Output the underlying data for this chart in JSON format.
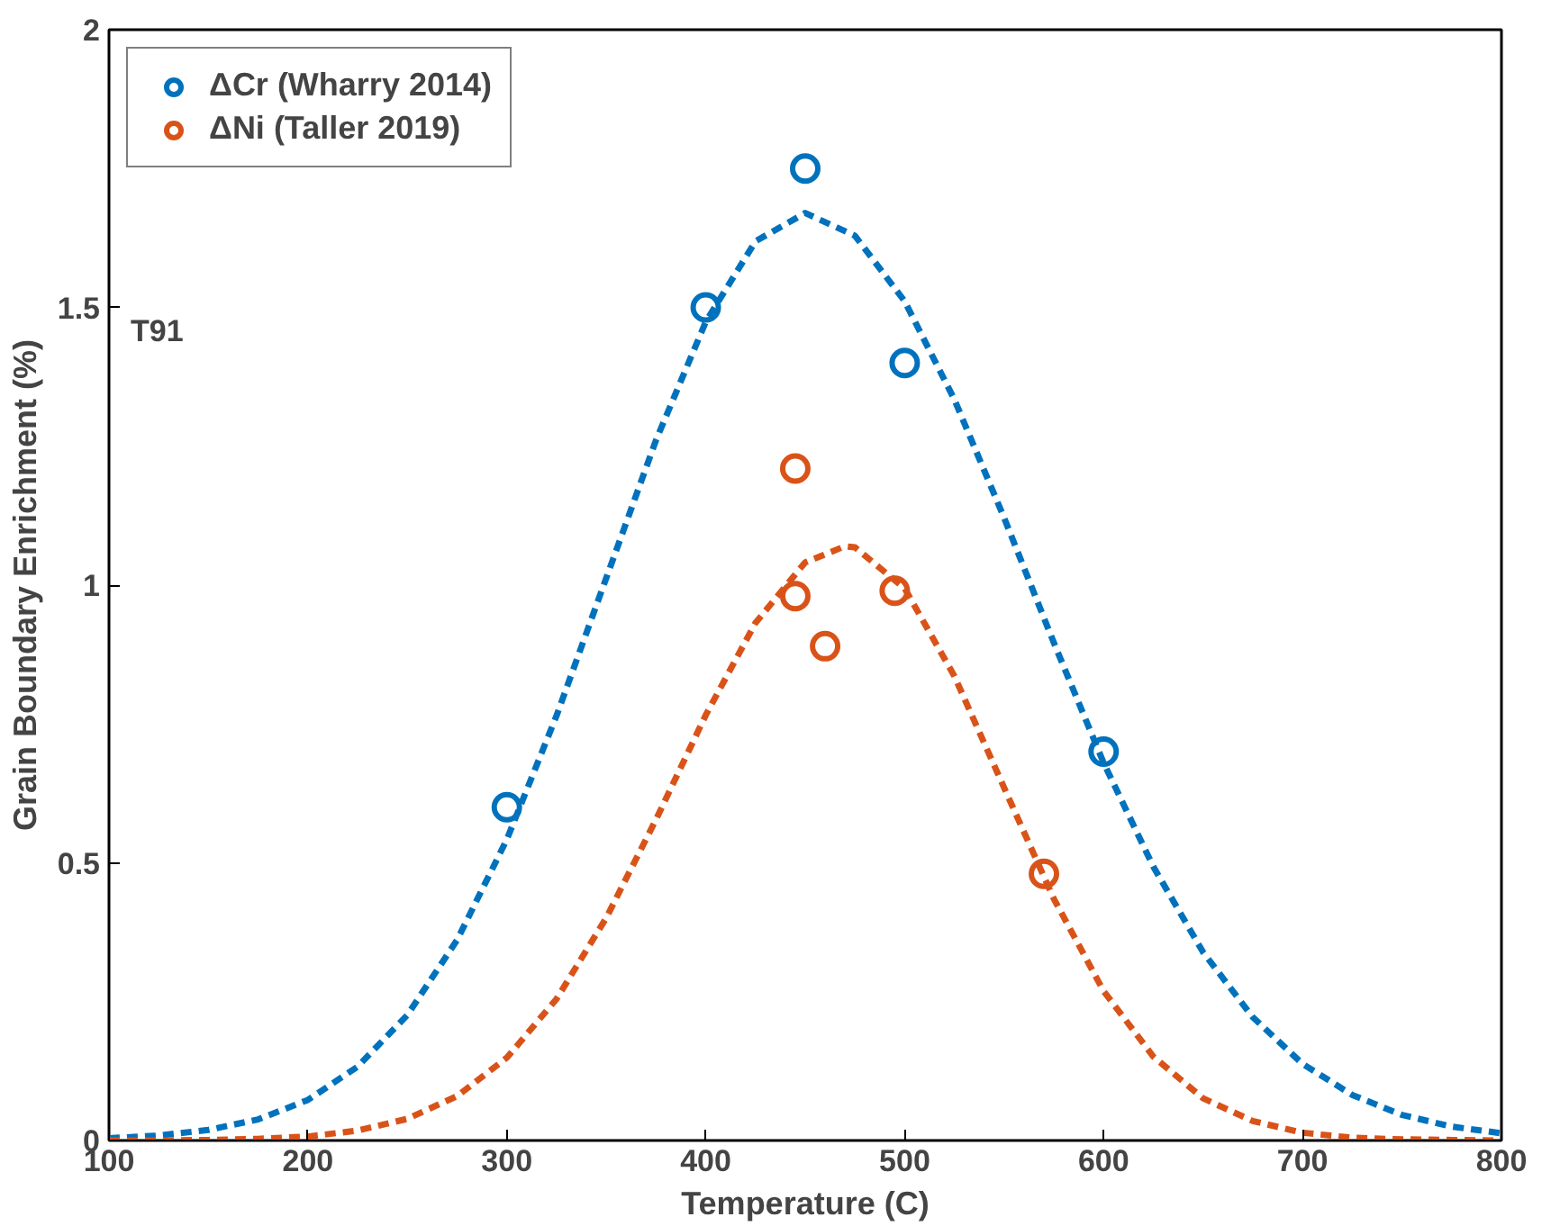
{
  "chart_data": {
    "type": "scatter",
    "xlabel": "Temperature (C)",
    "ylabel": "Grain Boundary Enrichment (%)",
    "xlim": [
      100,
      800
    ],
    "ylim": [
      0,
      2
    ],
    "xticks": [
      100,
      200,
      300,
      400,
      500,
      600,
      700,
      800
    ],
    "yticks": [
      0,
      {
        "value": 0.5,
        "label": "0.5"
      },
      1,
      {
        "value": 1.5,
        "label": "1.5"
      },
      2
    ],
    "grid": false,
    "legend": "top left",
    "marker": "circle",
    "annotations": [
      "T91"
    ],
    "series": [
      {
        "name": "ΔCr (Wharry 2014)",
        "color": "#0072bd",
        "x": [
          300,
          400,
          450,
          500,
          600
        ],
        "values": [
          0.6,
          1.5,
          1.75,
          1.4,
          0.7
        ]
      },
      {
        "name": "ΔNi (Taller 2019)",
        "color": "#d95319",
        "x": [
          445,
          445,
          460,
          495,
          570
        ],
        "values": [
          1.21,
          0.98,
          0.89,
          0.99,
          0.48
        ]
      },
      {
        "type": "line",
        "marker": "none",
        "line_style": "dashed",
        "color": "#0072bd",
        "x": [
          100,
          125,
          150,
          175,
          200,
          225,
          250,
          275,
          300,
          325,
          350,
          375,
          400,
          425,
          450,
          475,
          500,
          525,
          550,
          575,
          600,
          625,
          650,
          675,
          700,
          725,
          750,
          775,
          800
        ],
        "values": [
          0.004,
          0.009,
          0.019,
          0.038,
          0.073,
          0.133,
          0.226,
          0.361,
          0.542,
          0.765,
          1.013,
          1.261,
          1.474,
          1.619,
          1.67,
          1.629,
          1.511,
          1.334,
          1.121,
          0.896,
          0.68,
          0.493,
          0.339,
          0.222,
          0.138,
          0.082,
          0.046,
          0.025,
          0.013
        ]
      },
      {
        "type": "line",
        "marker": "none",
        "line_style": "dashed",
        "color": "#d95319",
        "x": [
          100,
          125,
          150,
          175,
          200,
          225,
          250,
          275,
          300,
          325,
          350,
          375,
          400,
          425,
          450,
          470,
          475,
          500,
          525,
          550,
          575,
          600,
          625,
          650,
          675,
          700,
          725,
          750,
          775,
          800
        ],
        "values": [
          0.0,
          0.0,
          0.001,
          0.003,
          0.007,
          0.018,
          0.039,
          0.08,
          0.149,
          0.255,
          0.401,
          0.578,
          0.766,
          0.932,
          1.041,
          1.07,
          1.068,
          0.994,
          0.836,
          0.635,
          0.435,
          0.269,
          0.151,
          0.076,
          0.035,
          0.014,
          0.005,
          0.002,
          0.001,
          0.0
        ]
      }
    ]
  }
}
